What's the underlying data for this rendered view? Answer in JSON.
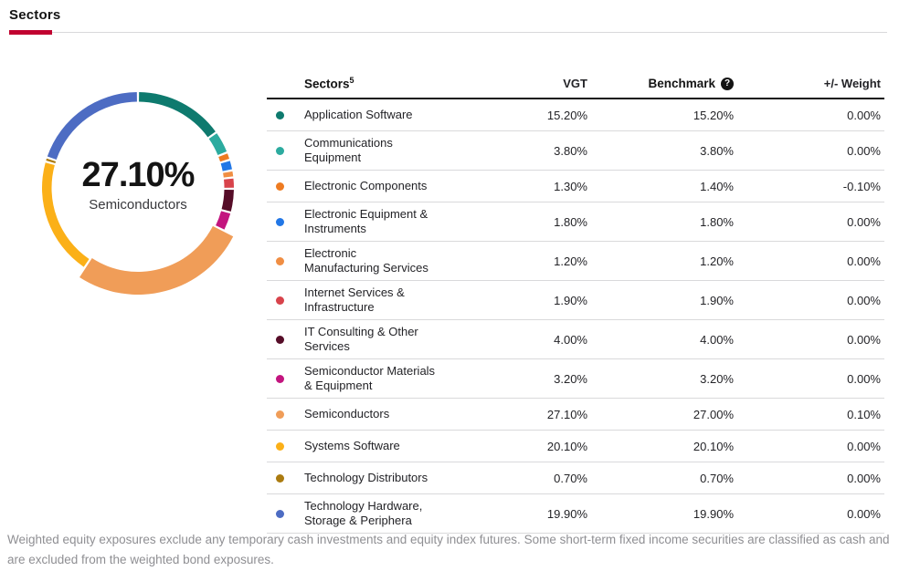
{
  "page": {
    "title": "Sectors",
    "footnote": "Weighted equity exposures exclude any temporary cash investments and equity index futures. Some short-term fixed income securities are classified as cash and are excluded from the weighted bond exposures."
  },
  "colors": {
    "accent_red": "#c10230",
    "header_border": "#141414",
    "row_separator": "#d9d9db"
  },
  "donut": {
    "center_value": "27.10%",
    "center_label": "Semiconductors"
  },
  "table": {
    "headers": {
      "sectors": "Sectors",
      "sectors_superscript": "5",
      "vgt": "VGT",
      "benchmark": "Benchmark",
      "benchmark_info_glyph": "?",
      "weight": "+/- Weight"
    },
    "rows": [
      {
        "sector": "Application Software",
        "vgt": "15.20%",
        "benchmark": "15.20%",
        "weight": "0.00%",
        "color": "#0e7a6e"
      },
      {
        "sector": "Communications\nEquipment",
        "vgt": "3.80%",
        "benchmark": "3.80%",
        "weight": "0.00%",
        "color": "#2cab9f"
      },
      {
        "sector": "Electronic Components",
        "vgt": "1.30%",
        "benchmark": "1.40%",
        "weight": "-0.10%",
        "color": "#ee7b21"
      },
      {
        "sector": "Electronic Equipment &\nInstruments",
        "vgt": "1.80%",
        "benchmark": "1.80%",
        "weight": "0.00%",
        "color": "#2277e6"
      },
      {
        "sector": "Electronic\nManufacturing Services",
        "vgt": "1.20%",
        "benchmark": "1.20%",
        "weight": "0.00%",
        "color": "#f08e43"
      },
      {
        "sector": "Internet Services &\nInfrastructure",
        "vgt": "1.90%",
        "benchmark": "1.90%",
        "weight": "0.00%",
        "color": "#d8434b"
      },
      {
        "sector": "IT Consulting & Other\nServices",
        "vgt": "4.00%",
        "benchmark": "4.00%",
        "weight": "0.00%",
        "color": "#560d28"
      },
      {
        "sector": "Semiconductor Materials\n& Equipment",
        "vgt": "3.20%",
        "benchmark": "3.20%",
        "weight": "0.00%",
        "color": "#c3157f"
      },
      {
        "sector": "Semiconductors",
        "vgt": "27.10%",
        "benchmark": "27.00%",
        "weight": "0.10%",
        "color": "#f09d58"
      },
      {
        "sector": "Systems Software",
        "vgt": "20.10%",
        "benchmark": "20.10%",
        "weight": "0.00%",
        "color": "#fbb018"
      },
      {
        "sector": "Technology Distributors",
        "vgt": "0.70%",
        "benchmark": "0.70%",
        "weight": "0.00%",
        "color": "#ab7b10"
      },
      {
        "sector": "Technology Hardware,\nStorage & Periphera",
        "vgt": "19.90%",
        "benchmark": "19.90%",
        "weight": "0.00%",
        "color": "#4d6cc3"
      }
    ]
  },
  "chart_data": {
    "type": "pie",
    "title": "Sectors donut — VGT weights",
    "categories": [
      "Application Software",
      "Communications Equipment",
      "Electronic Components",
      "Electronic Equipment & Instruments",
      "Electronic Manufacturing Services",
      "Internet Services & Infrastructure",
      "IT Consulting & Other Services",
      "Semiconductor Materials & Equipment",
      "Semiconductors",
      "Systems Software",
      "Technology Distributors",
      "Technology Hardware, Storage & Periphera"
    ],
    "values": [
      15.2,
      3.8,
      1.3,
      1.8,
      1.2,
      1.9,
      4.0,
      3.2,
      27.1,
      20.1,
      0.7,
      19.9
    ],
    "colors": [
      "#0e7a6e",
      "#2cab9f",
      "#ee7b21",
      "#2277e6",
      "#f08e43",
      "#d8434b",
      "#560d28",
      "#c3157f",
      "#f09d58",
      "#fbb018",
      "#ab7b10",
      "#4d6cc3"
    ],
    "highlighted_segment": "Semiconductors",
    "center_label": "27.10%",
    "center_sublabel": "Semiconductors",
    "legend_position": "none",
    "start_angle_deg": 0,
    "direction": "clockwise"
  }
}
